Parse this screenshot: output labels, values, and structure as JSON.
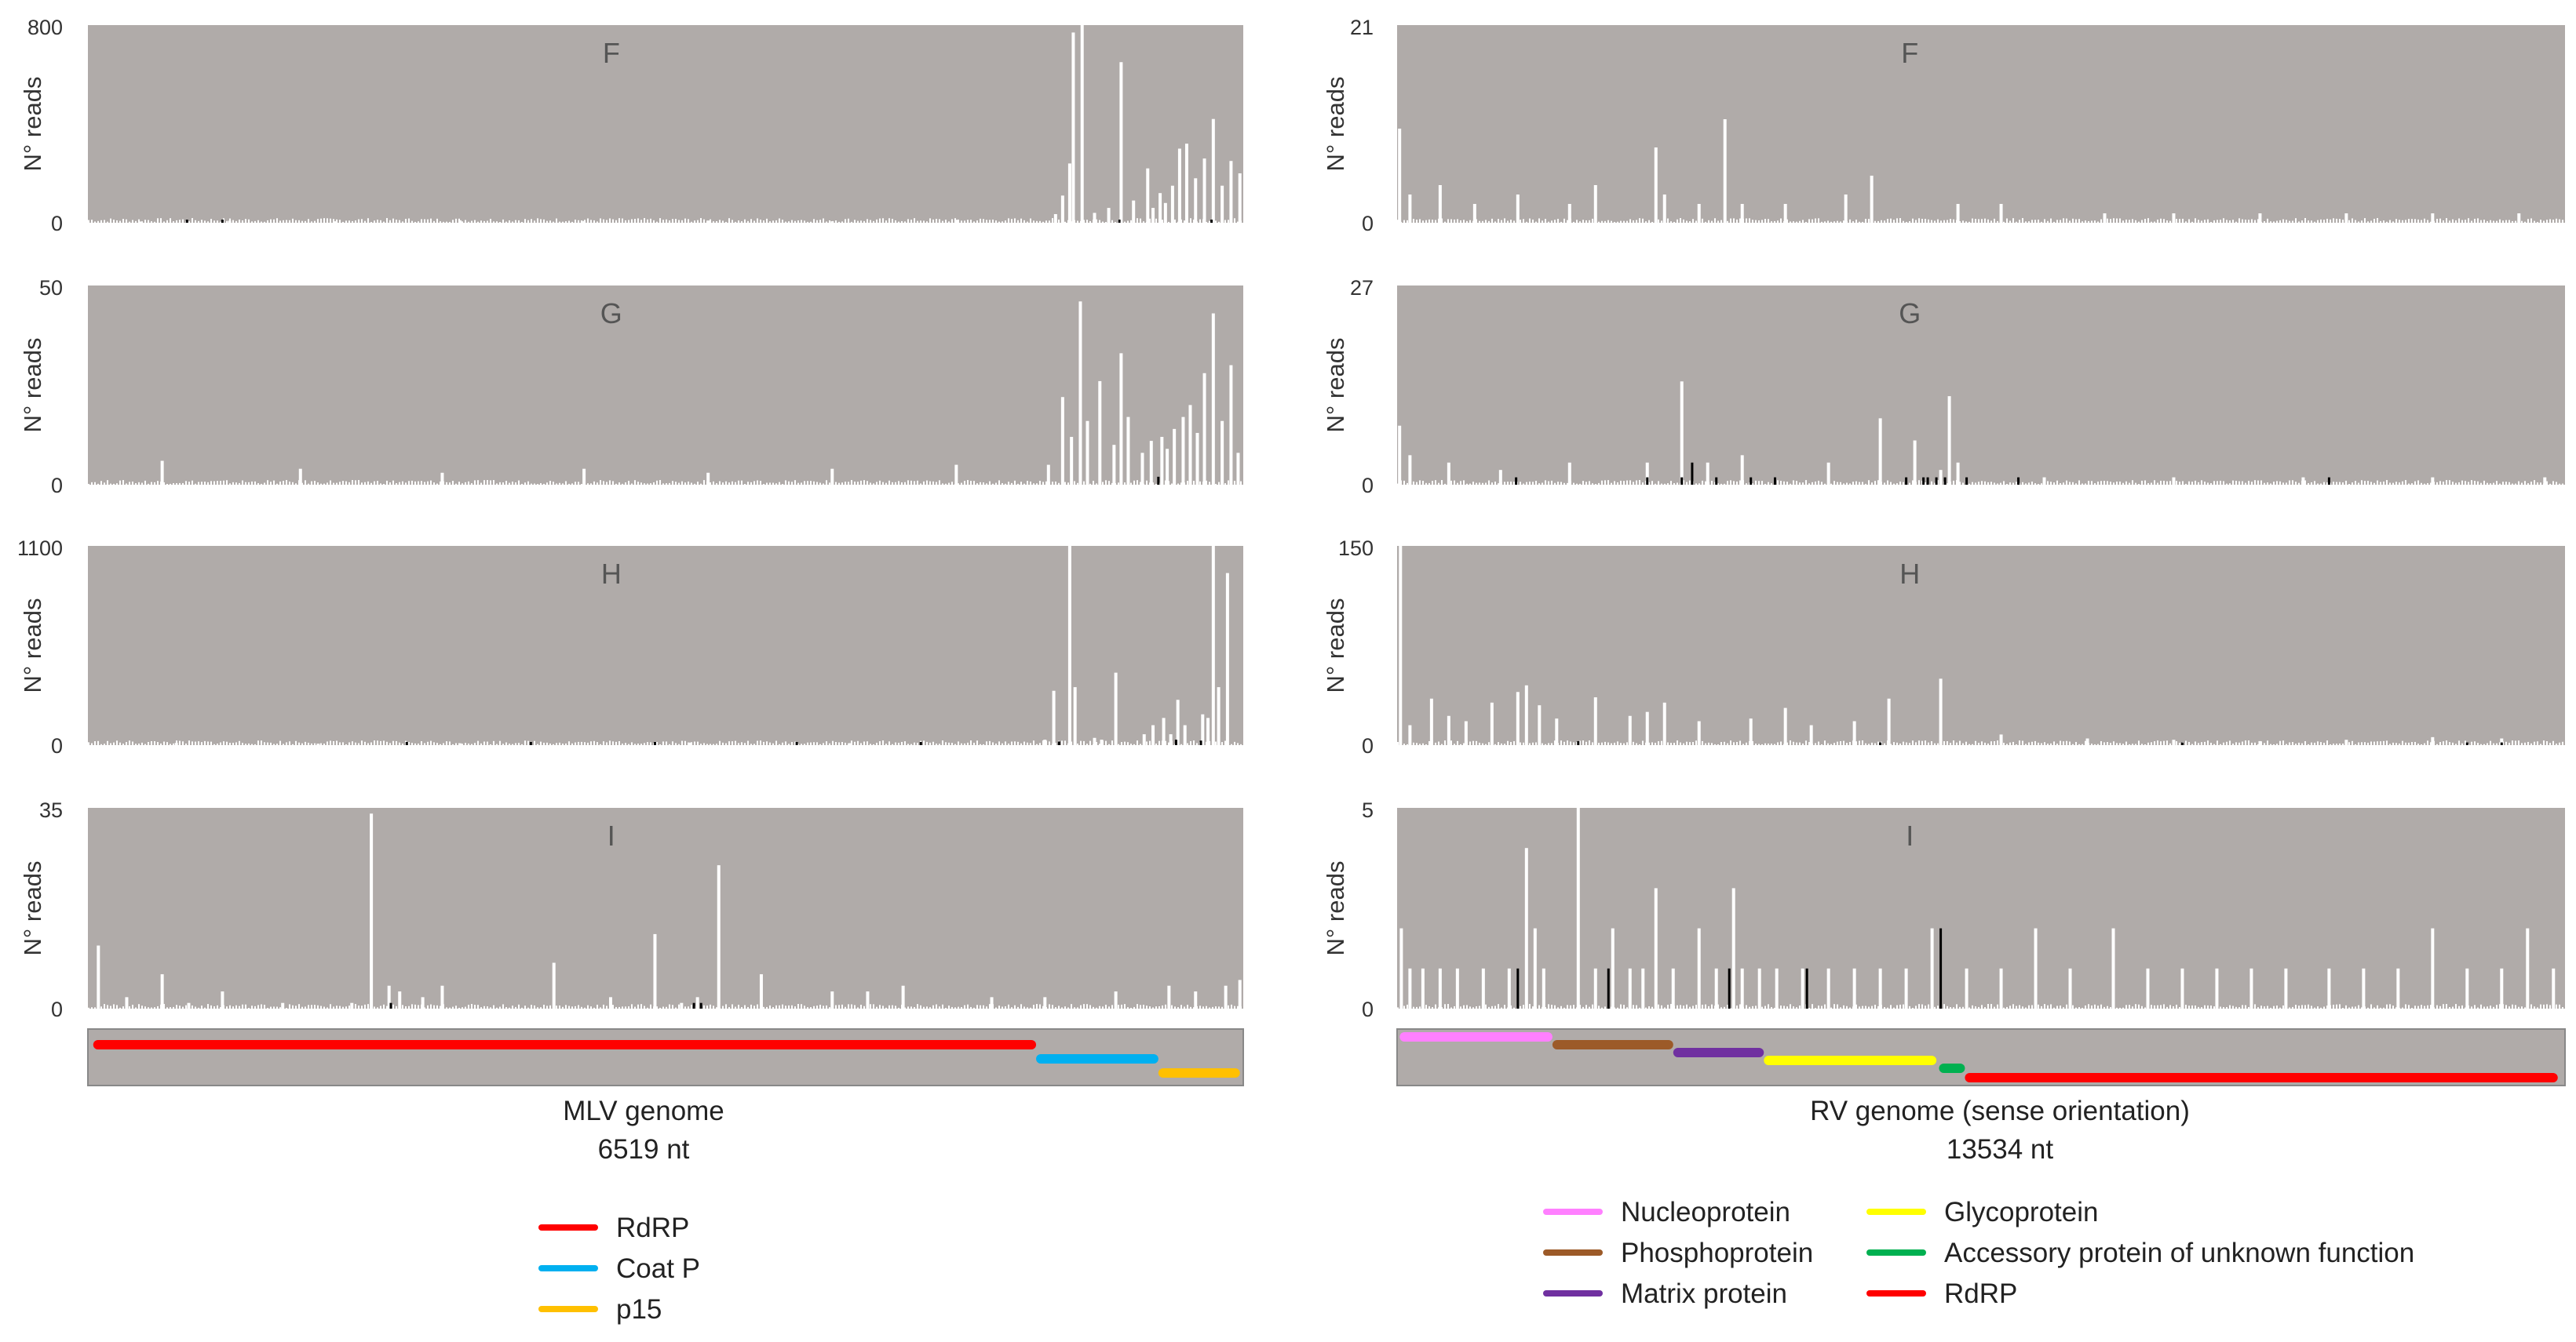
{
  "colors": {
    "plot_bg": "#b0aba9",
    "bar_primary": "#ffffff",
    "bar_secondary": "#000000",
    "axis_text": "#333333",
    "panel_letter": "#555555"
  },
  "chart_data": [
    {
      "type": "bar",
      "genome": "MLV",
      "panel": "F",
      "ylabel": "N° reads",
      "ylim": [
        0,
        800
      ],
      "ytick_labels": [
        "800",
        "0"
      ],
      "xlim": [
        1,
        6519
      ],
      "series": [
        {
          "name": "sense",
          "color": "#ffffff",
          "x": [
            300,
            800,
            1400,
            2100,
            2800,
            3500,
            4200,
            4900,
            5460,
            5500,
            5540,
            5560,
            5610,
            5680,
            5760,
            5830,
            5900,
            5980,
            6010,
            6050,
            6080,
            6120,
            6160,
            6200,
            6250,
            6300,
            6350,
            6400,
            6450,
            6500
          ],
          "values": [
            5,
            8,
            6,
            10,
            7,
            9,
            6,
            12,
            35,
            110,
            240,
            770,
            800,
            40,
            60,
            650,
            90,
            220,
            60,
            120,
            80,
            150,
            300,
            320,
            180,
            260,
            420,
            150,
            250,
            200
          ]
        },
        {
          "name": "antisense",
          "color": "#000000",
          "x": [
            560,
            760,
            5820,
            6340
          ],
          "values": [
            6,
            5,
            10,
            8
          ]
        }
      ]
    },
    {
      "type": "bar",
      "genome": "MLV",
      "panel": "G",
      "ylabel": "N° reads",
      "ylim": [
        0,
        50
      ],
      "ytick_labels": [
        "50",
        "0"
      ],
      "xlim": [
        1,
        6519
      ],
      "series": [
        {
          "name": "sense",
          "color": "#ffffff",
          "x": [
            420,
            1200,
            2000,
            2800,
            3500,
            4200,
            4900,
            5420,
            5500,
            5550,
            5600,
            5640,
            5710,
            5790,
            5830,
            5870,
            5950,
            6000,
            6060,
            6090,
            6130,
            6180,
            6220,
            6260,
            6300,
            6350,
            6400,
            6450,
            6490
          ],
          "values": [
            6,
            4,
            3,
            4,
            3,
            4,
            5,
            5,
            22,
            12,
            46,
            16,
            26,
            10,
            33,
            17,
            8,
            11,
            12,
            9,
            14,
            17,
            20,
            13,
            28,
            43,
            16,
            30,
            8
          ]
        },
        {
          "name": "antisense",
          "color": "#000000",
          "x": [
            6040
          ],
          "values": [
            2
          ]
        }
      ]
    },
    {
      "type": "bar",
      "genome": "MLV",
      "panel": "H",
      "ylabel": "N° reads",
      "ylim": [
        0,
        1100
      ],
      "ytick_labels": [
        "1100",
        "0"
      ],
      "xlim": [
        1,
        6519
      ],
      "series": [
        {
          "name": "sense",
          "color": "#ffffff",
          "x": [
            500,
            1300,
            2100,
            3400,
            4300,
            5400,
            5450,
            5540,
            5570,
            5680,
            5720,
            5800,
            5960,
            6010,
            6070,
            6110,
            6150,
            6190,
            6290,
            6320,
            6350,
            6380,
            6430
          ],
          "values": [
            12,
            8,
            10,
            14,
            11,
            30,
            300,
            1100,
            320,
            40,
            30,
            400,
            60,
            110,
            150,
            60,
            250,
            110,
            170,
            150,
            1110,
            320,
            950
          ]
        },
        {
          "name": "antisense",
          "color": "#000000",
          "x": [
            1800,
            2500,
            3200,
            4000,
            4700,
            5480,
            6140,
            6280
          ],
          "values": [
            15,
            12,
            10,
            14,
            12,
            20,
            30,
            25
          ]
        }
      ]
    },
    {
      "type": "bar",
      "genome": "MLV",
      "panel": "I",
      "ylabel": "N° reads",
      "ylim": [
        0,
        35
      ],
      "ytick_labels": [
        "35",
        "0"
      ],
      "xlim": [
        1,
        6519
      ],
      "series": [
        {
          "name": "sense",
          "color": "#ffffff",
          "x": [
            60,
            220,
            420,
            570,
            760,
            1100,
            1490,
            1600,
            1700,
            1760,
            1890,
            2000,
            2630,
            2950,
            3200,
            3350,
            3440,
            3560,
            3800,
            4200,
            4400,
            4600,
            5100,
            5400,
            5800,
            6100,
            6250,
            6420,
            6500
          ],
          "values": [
            11,
            2,
            6,
            1,
            3,
            1,
            1,
            34,
            4,
            3,
            2,
            4,
            8,
            2,
            13,
            1,
            2,
            25,
            6,
            3,
            3,
            4,
            2,
            2,
            3,
            4,
            3,
            4,
            5
          ]
        },
        {
          "name": "antisense",
          "color": "#000000",
          "x": [
            1710,
            3420,
            3460
          ],
          "values": [
            1,
            1,
            1
          ]
        }
      ]
    },
    {
      "type": "bar",
      "genome": "RV",
      "panel": "F",
      "ylabel": "N° reads",
      "ylim": [
        0,
        21
      ],
      "ytick_labels": [
        "21",
        "0"
      ],
      "xlim": [
        1,
        13534
      ],
      "series": [
        {
          "name": "sense",
          "color": "#ffffff",
          "x": [
            30,
            150,
            500,
            900,
            1400,
            2000,
            2300,
            3000,
            3100,
            3500,
            3800,
            4000,
            4500,
            5200,
            5500,
            6500,
            7000,
            8200,
            9000,
            10000,
            11000,
            12000,
            13000
          ],
          "values": [
            10,
            3,
            4,
            2,
            3,
            2,
            4,
            8,
            3,
            2,
            11,
            2,
            2,
            3,
            5,
            2,
            2,
            1,
            1,
            1,
            1,
            1,
            1
          ]
        }
      ]
    },
    {
      "type": "bar",
      "genome": "RV",
      "panel": "G",
      "ylabel": "N° reads",
      "ylim": [
        0,
        27
      ],
      "ytick_labels": [
        "27",
        "0"
      ],
      "xlim": [
        1,
        13534
      ],
      "series": [
        {
          "name": "sense",
          "color": "#ffffff",
          "x": [
            30,
            150,
            600,
            1200,
            2000,
            2900,
            3300,
            3600,
            4000,
            5000,
            5600,
            6000,
            6300,
            6400,
            6500,
            7500,
            9000,
            10500,
            12000,
            13300
          ],
          "values": [
            8,
            4,
            3,
            2,
            3,
            3,
            14,
            3,
            4,
            3,
            9,
            6,
            2,
            12,
            3,
            1,
            1,
            1,
            1,
            1
          ]
        },
        {
          "name": "antisense",
          "color": "#000000",
          "x": [
            1380,
            2900,
            3300,
            3420,
            3700,
            4100,
            4380,
            5900,
            6100,
            6150,
            6250,
            6350,
            6600,
            7200,
            10800
          ],
          "values": [
            1,
            1,
            1,
            3,
            1,
            1,
            1,
            1,
            1,
            1,
            1,
            1,
            1,
            1,
            1
          ]
        }
      ]
    },
    {
      "type": "bar",
      "genome": "RV",
      "panel": "H",
      "ylabel": "N° reads",
      "ylim": [
        0,
        150
      ],
      "ytick_labels": [
        "150",
        "0"
      ],
      "xlim": [
        1,
        13534
      ],
      "series": [
        {
          "name": "sense",
          "color": "#ffffff",
          "x": [
            40,
            150,
            400,
            600,
            800,
            1100,
            1400,
            1500,
            1650,
            1850,
            2300,
            2700,
            2900,
            3100,
            3500,
            4100,
            4500,
            4800,
            5300,
            5700,
            6300,
            7000,
            8000,
            9000,
            10000,
            11000,
            12000,
            12800
          ],
          "values": [
            150,
            15,
            35,
            22,
            18,
            32,
            40,
            45,
            30,
            20,
            36,
            22,
            25,
            32,
            18,
            20,
            28,
            15,
            18,
            35,
            50,
            8,
            5,
            4,
            3,
            4,
            6,
            5
          ]
        },
        {
          "name": "antisense",
          "color": "#000000",
          "x": [
            2100,
            5600,
            9100,
            12400,
            12800
          ],
          "values": [
            3,
            2,
            2,
            2,
            2
          ]
        }
      ]
    },
    {
      "type": "bar",
      "genome": "RV",
      "panel": "I",
      "ylabel": "N° reads",
      "ylim": [
        0,
        5
      ],
      "ytick_labels": [
        "5",
        "0"
      ],
      "xlim": [
        1,
        13534
      ],
      "series": [
        {
          "name": "sense",
          "color": "#ffffff",
          "x": [
            50,
            150,
            300,
            500,
            700,
            1000,
            1300,
            1500,
            1600,
            1700,
            2100,
            2300,
            2500,
            2700,
            2850,
            3000,
            3200,
            3500,
            3700,
            3900,
            4000,
            4200,
            4400,
            4700,
            5000,
            5300,
            5600,
            5900,
            6200,
            6600,
            7000,
            7400,
            7800,
            8300,
            8700,
            9100,
            9500,
            9900,
            10300,
            10800,
            11200,
            11600,
            12000,
            12400,
            12800,
            13100,
            13400
          ],
          "values": [
            2,
            1,
            1,
            1,
            1,
            1,
            1,
            4,
            2,
            1,
            5,
            1,
            2,
            1,
            1,
            3,
            1,
            2,
            1,
            3,
            1,
            1,
            1,
            1,
            1,
            1,
            1,
            1,
            2,
            1,
            1,
            2,
            1,
            2,
            1,
            1,
            1,
            1,
            1,
            1,
            1,
            1,
            2,
            1,
            1,
            2,
            1
          ]
        },
        {
          "name": "antisense",
          "color": "#000000",
          "x": [
            1400,
            2450,
            3850,
            4750,
            6300
          ],
          "values": [
            1,
            1,
            1,
            1,
            2
          ]
        }
      ]
    }
  ],
  "genome_maps": [
    {
      "name": "MLV",
      "title_line1": "MLV genome",
      "title_line2": "6519 nt",
      "length": 6519,
      "genes": [
        {
          "name": "RdRP",
          "start": 30,
          "end": 5350,
          "color": "#ff0000"
        },
        {
          "name": "Coat P",
          "start": 5350,
          "end": 6040,
          "color": "#00b0f0"
        },
        {
          "name": "p15",
          "start": 6040,
          "end": 6500,
          "color": "#ffc000"
        }
      ]
    },
    {
      "name": "RV",
      "title_line1": "RV genome (sense orientation)",
      "title_line2": "13534 nt",
      "length": 13534,
      "genes": [
        {
          "name": "Nucleoprotein",
          "start": 30,
          "end": 1800,
          "color": "#ff80ff"
        },
        {
          "name": "Phosphoprotein",
          "start": 1800,
          "end": 3200,
          "color": "#9c5a28"
        },
        {
          "name": "Matrix protein",
          "start": 3200,
          "end": 4250,
          "color": "#7030a0"
        },
        {
          "name": "Glycoprotein",
          "start": 4250,
          "end": 6250,
          "color": "#ffff00"
        },
        {
          "name": "Accessory protein of unknown function",
          "start": 6280,
          "end": 6580,
          "color": "#00b050"
        },
        {
          "name": "RdRP",
          "start": 6580,
          "end": 13450,
          "color": "#ff0000"
        }
      ]
    }
  ],
  "legends": {
    "mlv": [
      "RdRP",
      "Coat P",
      "p15"
    ],
    "rv": [
      "Nucleoprotein",
      "Phosphoprotein",
      "Matrix protein",
      "Glycoprotein",
      "Accessory protein of unknown function",
      "RdRP"
    ]
  }
}
